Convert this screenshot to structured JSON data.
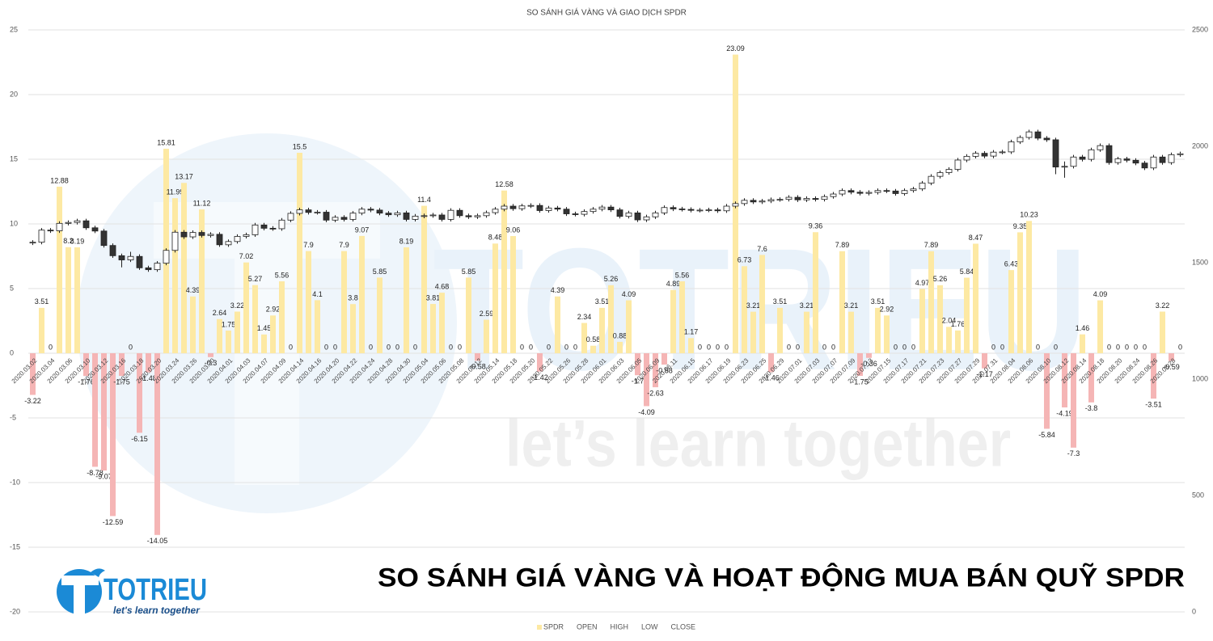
{
  "chart_data": {
    "type": "bar-candlestick",
    "title": "SO SÁNH GIÁ VÀNG VÀ GIAO DỊCH SPDR",
    "categories": [
      "2020.03.02",
      null,
      "2020.03.04",
      null,
      "2020.03.06",
      null,
      "2020.03.10",
      null,
      "2020.03.12",
      null,
      "2020.03.16",
      null,
      "2020.03.18",
      null,
      "2020.03.20",
      null,
      "2020.03.24",
      null,
      "2020.03.26",
      null,
      "2020.03.30",
      null,
      "2020.04.01",
      null,
      "2020.04.03",
      null,
      "2020.04.07",
      null,
      "2020.04.09",
      null,
      "2020.04.14",
      null,
      "2020.04.16",
      null,
      "2020.04.20",
      null,
      "2020.04.22",
      null,
      "2020.04.24",
      null,
      "2020.04.28",
      null,
      "2020.04.30",
      null,
      "2020.05.04",
      null,
      "2020.05.06",
      null,
      "2020.05.08",
      null,
      "2020.05.12",
      null,
      "2020.05.14",
      null,
      "2020.05.18",
      null,
      "2020.05.20",
      null,
      "2020.05.22",
      null,
      "2020.05.26",
      null,
      "2020.05.28",
      null,
      "2020.06.01",
      null,
      "2020.06.03",
      null,
      "2020.06.05",
      null,
      "2020.06.09",
      null,
      "2020.06.11",
      null,
      "2020.06.15",
      null,
      "2020.06.17",
      null,
      "2020.06.19",
      null,
      "2020.06.23",
      null,
      "2020.06.25",
      null,
      "2020.06.29",
      null,
      "2020.07.01",
      null,
      "2020.07.03",
      null,
      "2020.07.07",
      null,
      "2020.07.09",
      null,
      "2020.07.13",
      null,
      "2020.07.15",
      null,
      "2020.07.17",
      null,
      "2020.07.21",
      null,
      "2020.07.23",
      null,
      "2020.07.27",
      null,
      "2020.07.29",
      null,
      "2020.07.31",
      null,
      "2020.08.04",
      null,
      "2020.08.06",
      null,
      "2020.08.10",
      null,
      "2020.08.12",
      null,
      "2020.08.14",
      null,
      "2020.08.18",
      null,
      "2020.08.20",
      null,
      "2020.08.24",
      null,
      "2020.08.26",
      null,
      "2020.08.28",
      null
    ],
    "series": [
      {
        "name": "SPDR",
        "color": "#fde9a3",
        "values": [
          -3.22,
          3.51,
          0,
          12.88,
          8.2,
          8.19,
          -1.76,
          -8.78,
          -9.07,
          -12.59,
          -1.75,
          0,
          -6.15,
          -1.48,
          -14.05,
          15.81,
          11.99,
          13.17,
          4.39,
          11.12,
          -0.3,
          2.64,
          1.75,
          3.22,
          7.02,
          5.27,
          1.45,
          2.92,
          5.56,
          0,
          15.5,
          7.9,
          4.1,
          0,
          0,
          7.9,
          3.8,
          9.07,
          0,
          5.85,
          0,
          0,
          8.19,
          0,
          11.4,
          3.81,
          4.68,
          0,
          0,
          5.85,
          -0.58,
          2.59,
          8.48,
          12.58,
          9.06,
          0,
          0,
          -1.42,
          0,
          4.39,
          0,
          0,
          2.34,
          0.58,
          3.51,
          5.26,
          0.88,
          4.09,
          -1.7,
          -4.09,
          -2.63,
          -0.88,
          4.89,
          5.56,
          1.17,
          0,
          0,
          0,
          0,
          23.09,
          6.73,
          3.21,
          7.6,
          -1.46,
          3.51,
          0,
          0,
          3.21,
          9.36,
          0,
          0,
          7.89,
          3.21,
          -1.75,
          -0.36,
          3.51,
          2.92,
          0,
          0,
          0,
          4.97,
          7.89,
          5.26,
          2.04,
          1.76,
          5.84,
          8.47,
          -1.17,
          0,
          0,
          6.43,
          9.35,
          10.23,
          0,
          -5.84,
          0,
          -4.19,
          -7.3,
          1.46,
          -3.8,
          4.09,
          0,
          0,
          0,
          0,
          0,
          -3.51,
          3.22,
          -0.59,
          0
        ]
      },
      {
        "name": "OPEN",
        "axis": "y2",
        "values": [
          1585,
          1588,
          1640,
          1637,
          1669,
          1673,
          1680,
          1650,
          1636,
          1574,
          1530,
          1512,
          1527,
          1478,
          1470,
          1498,
          1553,
          1631,
          1611,
          1630,
          1617,
          1622,
          1577,
          1591,
          1613,
          1620,
          1662,
          1648,
          1646,
          1683,
          1712,
          1727,
          1716,
          1717,
          1683,
          1695,
          1686,
          1713,
          1730,
          1726,
          1713,
          1706,
          1714,
          1686,
          1700,
          1702,
          1705,
          1686,
          1725,
          1702,
          1697,
          1702,
          1715,
          1730,
          1743,
          1732,
          1744,
          1746,
          1724,
          1735,
          1730,
          1710,
          1708,
          1720,
          1730,
          1739,
          1727,
          1699,
          1714,
          1684,
          1697,
          1714,
          1737,
          1731,
          1729,
          1725,
          1726,
          1727,
          1723,
          1743,
          1754,
          1768,
          1761,
          1765,
          1771,
          1772,
          1781,
          1770,
          1776,
          1772,
          1784,
          1795,
          1810,
          1803,
          1798,
          1802,
          1810,
          1808,
          1797,
          1810,
          1817,
          1842,
          1871,
          1887,
          1901,
          1941,
          1957,
          1970,
          1958,
          1975,
          1976,
          2019,
          2038,
          2062,
          2035,
          2028,
          1911,
          1914,
          1954,
          1944,
          1985,
          2003,
          1930,
          1946,
          1940,
          1928,
          1907,
          1954,
          1930,
          1964
        ]
      },
      {
        "name": "HIGH",
        "axis": "y2",
        "values": [
          1597,
          1649,
          1649,
          1678,
          1682,
          1689,
          1689,
          1659,
          1645,
          1583,
          1539,
          1547,
          1536,
          1487,
          1507,
          1562,
          1640,
          1640,
          1639,
          1639,
          1631,
          1631,
          1600,
          1622,
          1629,
          1671,
          1671,
          1657,
          1692,
          1721,
          1736,
          1736,
          1726,
          1726,
          1704,
          1704,
          1722,
          1739,
          1739,
          1735,
          1722,
          1723,
          1723,
          1709,
          1711,
          1714,
          1714,
          1734,
          1734,
          1711,
          1711,
          1724,
          1739,
          1752,
          1752,
          1753,
          1755,
          1755,
          1744,
          1744,
          1739,
          1719,
          1729,
          1739,
          1748,
          1748,
          1736,
          1723,
          1723,
          1706,
          1723,
          1746,
          1746,
          1740,
          1738,
          1735,
          1736,
          1736,
          1752,
          1763,
          1777,
          1777,
          1774,
          1780,
          1781,
          1790,
          1790,
          1785,
          1785,
          1793,
          1804,
          1819,
          1819,
          1812,
          1811,
          1819,
          1819,
          1817,
          1819,
          1826,
          1851,
          1880,
          1896,
          1910,
          1950,
          1966,
          1979,
          1979,
          1984,
          1985,
          2028,
          2047,
          2071,
          2071,
          2044,
          2037,
          1935,
          1963,
          1963,
          1994,
          2012,
          2012,
          1955,
          1955,
          1949,
          1937,
          1963,
          1963,
          1973,
          1977
        ]
      },
      {
        "name": "LOW",
        "axis": "y2",
        "values": [
          1576,
          1579,
          1628,
          1628,
          1660,
          1664,
          1641,
          1627,
          1565,
          1521,
          1480,
          1503,
          1469,
          1461,
          1461,
          1489,
          1544,
          1602,
          1602,
          1608,
          1608,
          1568,
          1568,
          1582,
          1604,
          1611,
          1639,
          1637,
          1637,
          1674,
          1703,
          1707,
          1707,
          1674,
          1674,
          1677,
          1677,
          1704,
          1717,
          1704,
          1697,
          1697,
          1677,
          1677,
          1691,
          1693,
          1677,
          1677,
          1693,
          1688,
          1688,
          1693,
          1706,
          1721,
          1723,
          1723,
          1735,
          1715,
          1715,
          1721,
          1701,
          1699,
          1699,
          1711,
          1721,
          1718,
          1690,
          1690,
          1675,
          1675,
          1688,
          1705,
          1722,
          1720,
          1716,
          1716,
          1717,
          1714,
          1714,
          1734,
          1745,
          1752,
          1752,
          1756,
          1762,
          1763,
          1761,
          1761,
          1763,
          1763,
          1775,
          1786,
          1794,
          1789,
          1789,
          1793,
          1799,
          1788,
          1788,
          1801,
          1808,
          1833,
          1862,
          1878,
          1892,
          1932,
          1948,
          1949,
          1949,
          1966,
          1967,
          2010,
          2029,
          2026,
          2019,
          1880,
          1865,
          1905,
          1935,
          1935,
          1976,
          1921,
          1921,
          1931,
          1919,
          1898,
          1898,
          1921,
          1921,
          1955
        ]
      },
      {
        "name": "CLOSE",
        "axis": "y2",
        "values": [
          1588,
          1640,
          1637,
          1669,
          1673,
          1680,
          1650,
          1636,
          1574,
          1530,
          1512,
          1527,
          1478,
          1470,
          1498,
          1553,
          1631,
          1611,
          1630,
          1617,
          1622,
          1577,
          1591,
          1613,
          1620,
          1662,
          1648,
          1646,
          1683,
          1712,
          1727,
          1716,
          1717,
          1683,
          1695,
          1686,
          1713,
          1730,
          1726,
          1713,
          1706,
          1714,
          1686,
          1700,
          1702,
          1705,
          1686,
          1725,
          1702,
          1697,
          1702,
          1715,
          1730,
          1743,
          1732,
          1744,
          1746,
          1724,
          1735,
          1730,
          1710,
          1708,
          1720,
          1730,
          1739,
          1727,
          1699,
          1714,
          1684,
          1697,
          1714,
          1737,
          1731,
          1729,
          1725,
          1726,
          1727,
          1723,
          1743,
          1754,
          1768,
          1761,
          1765,
          1771,
          1772,
          1781,
          1770,
          1776,
          1772,
          1784,
          1795,
          1810,
          1803,
          1798,
          1802,
          1810,
          1808,
          1797,
          1810,
          1817,
          1842,
          1871,
          1887,
          1901,
          1941,
          1957,
          1970,
          1958,
          1975,
          1976,
          2019,
          2038,
          2062,
          2035,
          2028,
          1911,
          1914,
          1954,
          1944,
          1985,
          2003,
          1930,
          1946,
          1940,
          1928,
          1907,
          1954,
          1930,
          1964,
          1968
        ]
      }
    ],
    "negative_color": "#f5b5b5",
    "up_color": "#ffffff",
    "down_color": "#333333",
    "ylim": [
      -20,
      25
    ],
    "yticks": [
      -20,
      -15,
      -10,
      -5,
      0,
      5,
      10,
      15,
      20,
      25
    ],
    "y2lim": [
      0,
      2500
    ],
    "y2ticks": [
      0,
      500,
      1000,
      1500,
      2000,
      2500
    ],
    "grid": true,
    "legend": "bottom"
  },
  "overlay_title": "SO SÁNH GIÁ VÀNG VÀ HOẠT ĐỘNG MUA BÁN QUỸ SPDR",
  "watermark": {
    "brand": "TOTRIEU",
    "tagline": "let’s learn together"
  },
  "logo": {
    "brand": "TOTRIEU",
    "tagline": "let's learn together"
  }
}
